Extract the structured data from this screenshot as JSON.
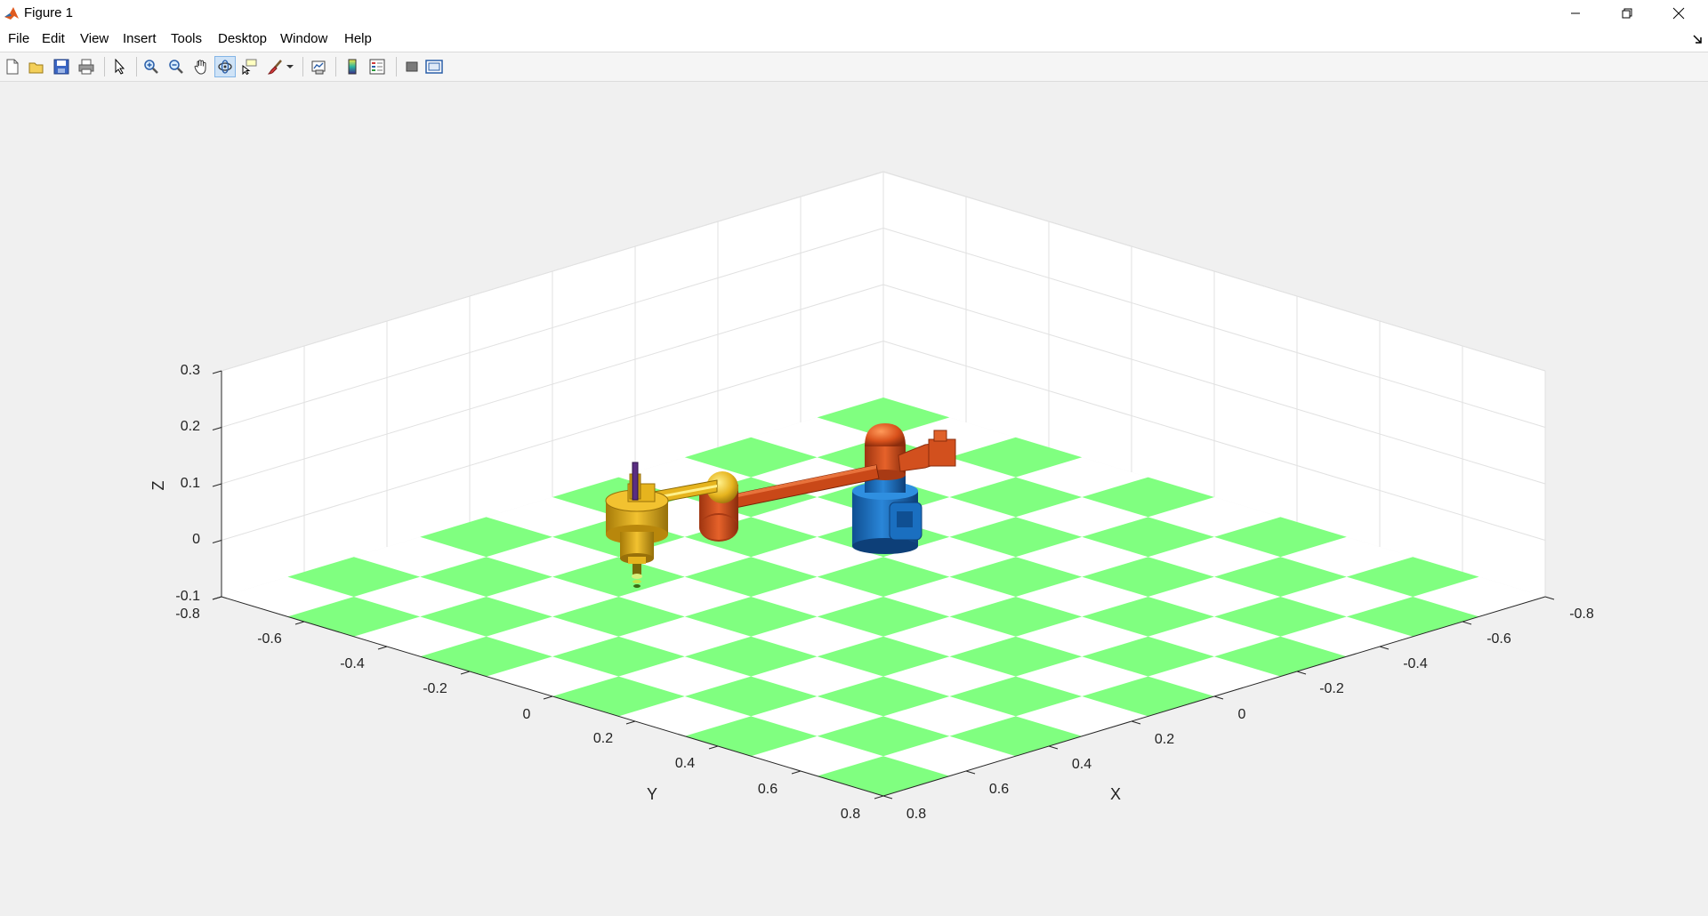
{
  "window": {
    "title": "Figure 1",
    "buttons": [
      "minimize",
      "restore",
      "close"
    ]
  },
  "menu": {
    "items": [
      "File",
      "Edit",
      "View",
      "Insert",
      "Tools",
      "Desktop",
      "Window",
      "Help"
    ]
  },
  "toolbar": {
    "tools": [
      {
        "name": "new-figure-icon"
      },
      {
        "name": "open-file-icon"
      },
      {
        "name": "save-icon"
      },
      {
        "name": "print-icon"
      },
      {
        "name": "edit-plot-arrow-icon"
      },
      {
        "name": "zoom-in-icon"
      },
      {
        "name": "zoom-out-icon"
      },
      {
        "name": "pan-hand-icon"
      },
      {
        "name": "rotate-3d-icon",
        "pressed": true
      },
      {
        "name": "data-cursor-icon"
      },
      {
        "name": "brush-icon"
      },
      {
        "name": "link-plot-icon"
      },
      {
        "name": "insert-colorbar-icon"
      },
      {
        "name": "insert-legend-icon"
      },
      {
        "name": "hide-plot-tools-icon"
      },
      {
        "name": "show-plot-tools-icon"
      }
    ]
  },
  "axes": {
    "z_label": "Z",
    "y_label": "Y",
    "x_label": "X",
    "z_ticks": [
      "0.3",
      "0.2",
      "0.1",
      "0",
      "-0.1"
    ],
    "y_ticks": [
      "-0.8",
      "-0.6",
      "-0.4",
      "-0.2",
      "0",
      "0.2",
      "0.4",
      "0.6",
      "0.8"
    ],
    "x_ticks": [
      "0.8",
      "0.6",
      "0.4",
      "0.2",
      "0",
      "-0.2",
      "-0.4",
      "-0.6",
      "-0.8"
    ],
    "grid": true,
    "floor_colors": [
      "#80ff80",
      "#ffffff"
    ]
  },
  "colors": {
    "base_blue": "#1a6fc0",
    "arm_orange": "#d2501e",
    "joint_gold": "#e6b41e",
    "tool_purple": "#5a2d82",
    "floor_green": "#80ff80"
  }
}
